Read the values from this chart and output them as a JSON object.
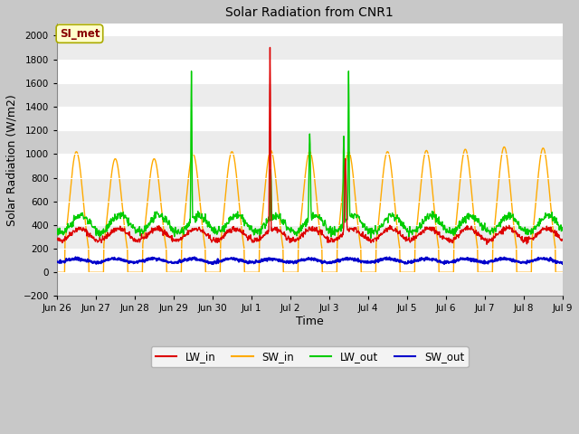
{
  "title": "Solar Radiation from CNR1",
  "xlabel": "Time",
  "ylabel": "Solar Radiation (W/m2)",
  "ylim": [
    -200,
    2100
  ],
  "yticks": [
    -200,
    0,
    200,
    400,
    600,
    800,
    1000,
    1200,
    1400,
    1600,
    1800,
    2000
  ],
  "fig_bg_color": "#c8c8c8",
  "plot_bg_color": "#ffffff",
  "grid_color": "#dddddd",
  "line_colors": {
    "LW_in": "#dd0000",
    "SW_in": "#ffaa00",
    "LW_out": "#00cc00",
    "SW_out": "#0000cc"
  },
  "annotation_text": "SI_met",
  "annotation_color": "#880000",
  "annotation_bg": "#ffffcc",
  "annotation_edge": "#aaaa00",
  "xtick_labels": [
    "Jun 26",
    "Jun 27",
    "Jun 28",
    "Jun 29",
    "Jun 30",
    "Jul 1",
    "Jul 2",
    "Jul 3",
    "Jul 4",
    "Jul 5",
    "Jul 6",
    "Jul 7",
    "Jul 8",
    "Jul 9"
  ],
  "legend_labels": [
    "LW_in",
    "SW_in",
    "LW_out",
    "SW_out"
  ]
}
